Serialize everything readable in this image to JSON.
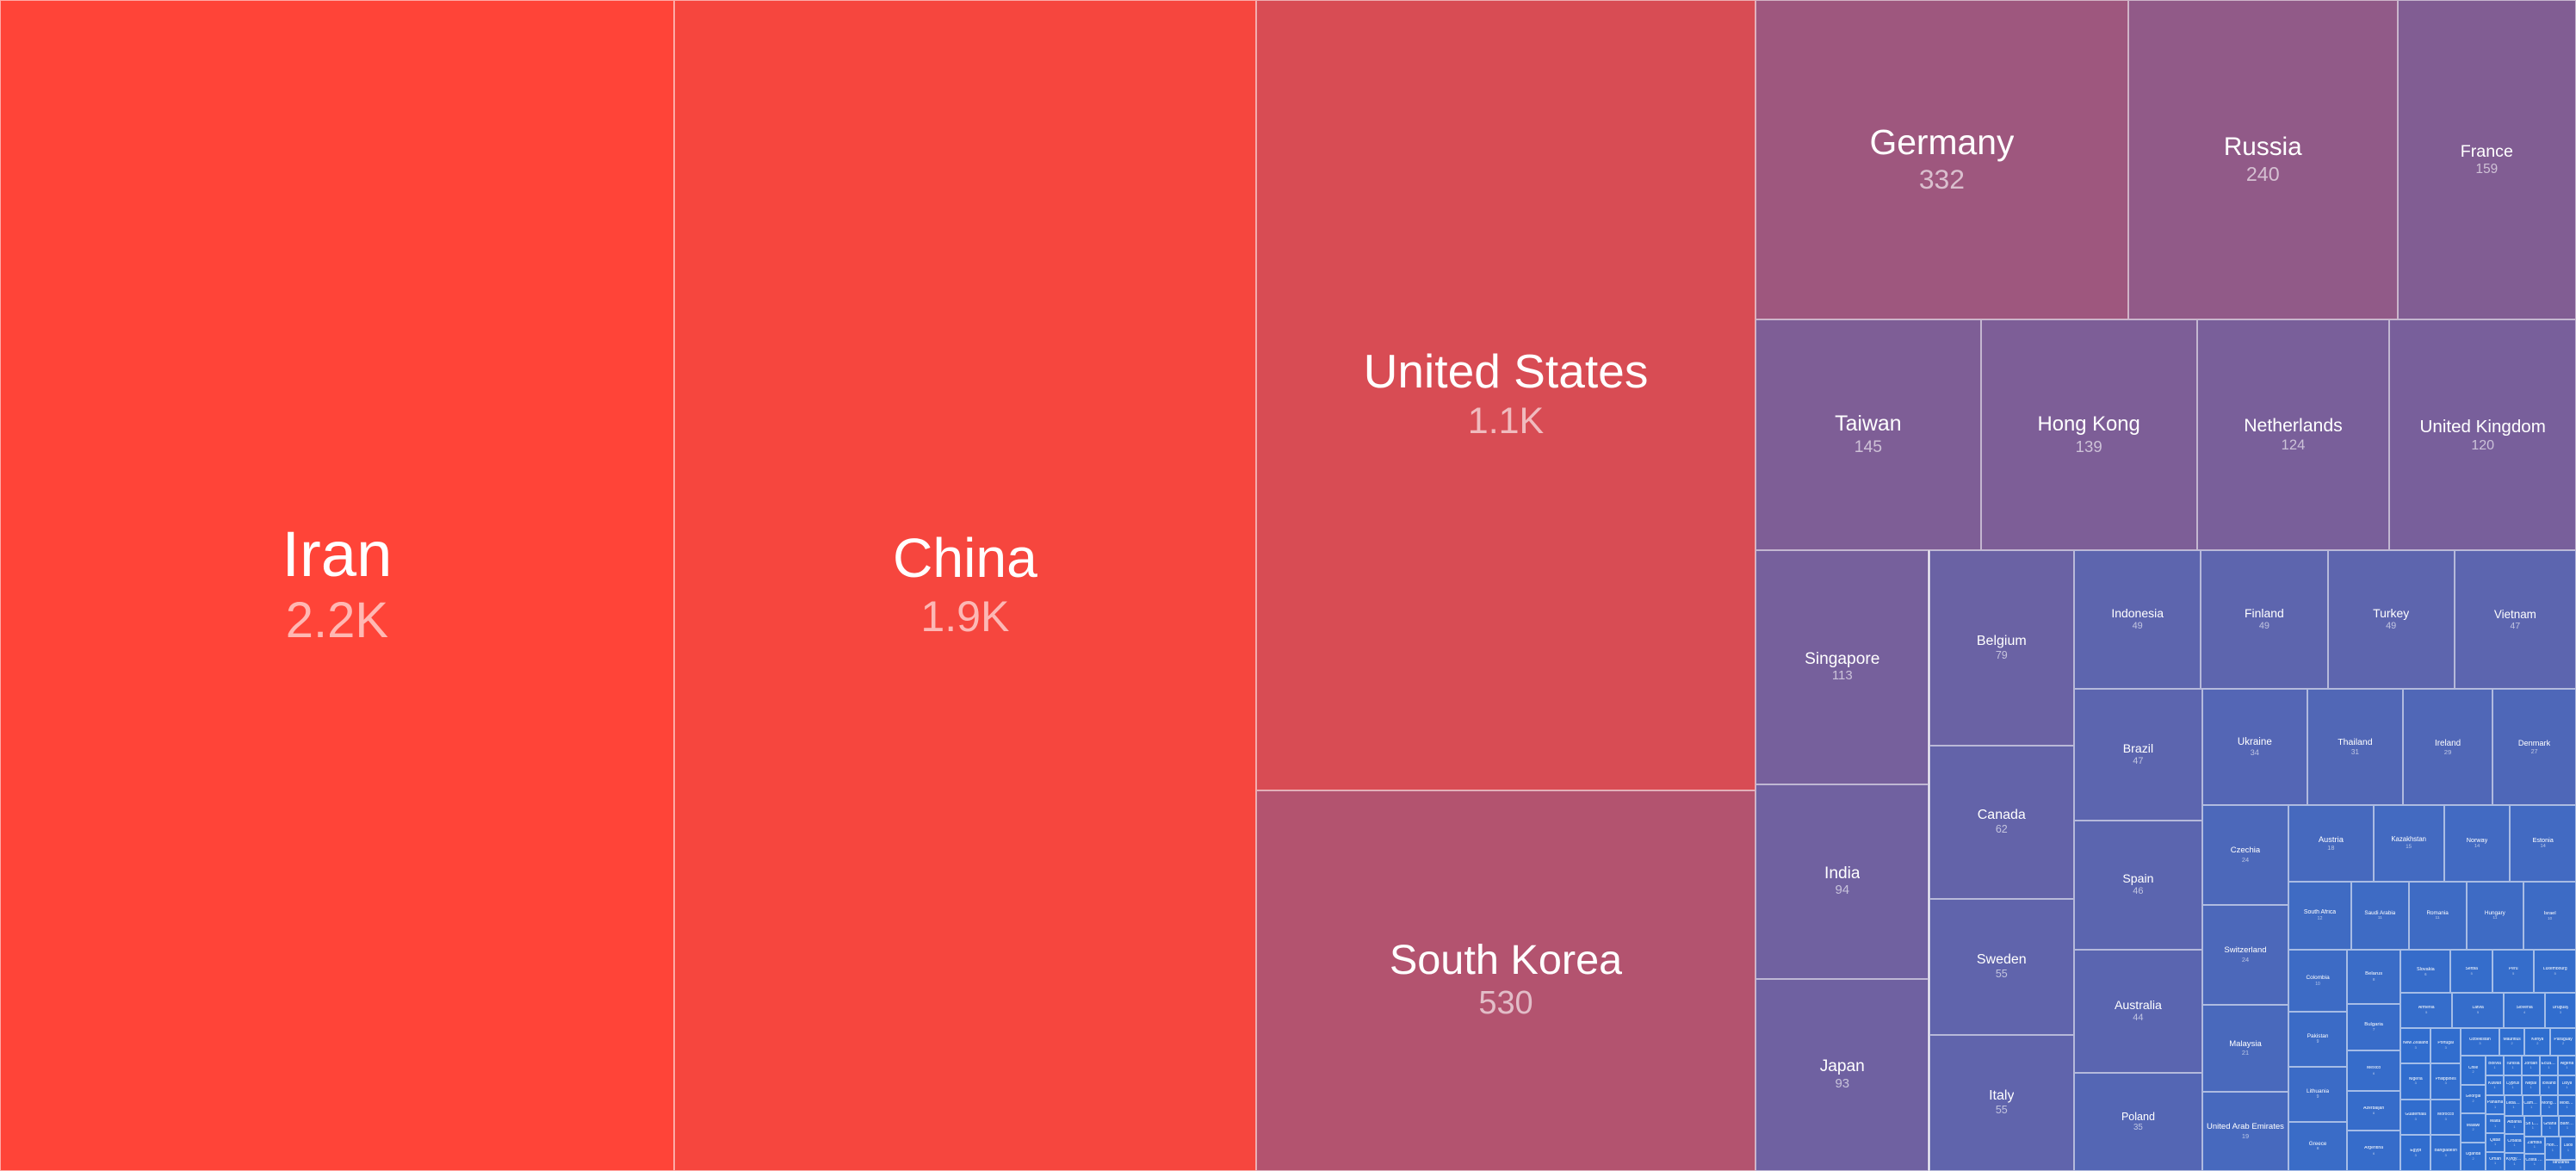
{
  "chart_data": {
    "type": "treemap",
    "colors": {
      "high": "#ff4438",
      "low": "#2e6ed0"
    },
    "items": [
      {
        "name": "Iran",
        "value": 2200,
        "label": "2.2K"
      },
      {
        "name": "China",
        "value": 1900,
        "label": "1.9K"
      },
      {
        "name": "United States",
        "value": 1100,
        "label": "1.1K"
      },
      {
        "name": "South Korea",
        "value": 530,
        "label": "530"
      },
      {
        "name": "Germany",
        "value": 332,
        "label": "332"
      },
      {
        "name": "Russia",
        "value": 240,
        "label": "240"
      },
      {
        "name": "France",
        "value": 159,
        "label": "159"
      },
      {
        "name": "Taiwan",
        "value": 145,
        "label": "145"
      },
      {
        "name": "Hong Kong",
        "value": 139,
        "label": "139"
      },
      {
        "name": "Netherlands",
        "value": 124,
        "label": "124"
      },
      {
        "name": "United Kingdom",
        "value": 120,
        "label": "120"
      },
      {
        "name": "Singapore",
        "value": 113,
        "label": "113"
      },
      {
        "name": "India",
        "value": 94,
        "label": "94"
      },
      {
        "name": "Japan",
        "value": 93,
        "label": "93"
      },
      {
        "name": "Belgium",
        "value": 79,
        "label": "79"
      },
      {
        "name": "Indonesia",
        "value": 49,
        "label": "49"
      },
      {
        "name": "Finland",
        "value": 49,
        "label": "49"
      },
      {
        "name": "Vietnam",
        "value": 47,
        "label": "47"
      },
      {
        "name": "Brazil",
        "value": 47,
        "label": "47"
      },
      {
        "name": "Spain",
        "value": 46,
        "label": "46"
      },
      {
        "name": "Canada",
        "value": 62,
        "label": "62"
      },
      {
        "name": "Sweden",
        "value": 55,
        "label": "55"
      },
      {
        "name": "Italy",
        "value": 55,
        "label": "55"
      },
      {
        "name": "Turkey",
        "value": 49,
        "label": "49"
      },
      {
        "name": "Australia",
        "value": 44,
        "label": "44"
      },
      {
        "name": "Poland",
        "value": 35,
        "label": "35"
      },
      {
        "name": "Ukraine",
        "value": 34,
        "label": "34"
      },
      {
        "name": "Thailand",
        "value": 31,
        "label": "31"
      },
      {
        "name": "Ireland",
        "value": 29,
        "label": "29"
      },
      {
        "name": "Denmark",
        "value": 27,
        "label": "27"
      },
      {
        "name": "Czechia",
        "value": 24,
        "label": "24"
      },
      {
        "name": "Switzerland",
        "value": 24,
        "label": "24"
      },
      {
        "name": "Malaysia",
        "value": 21,
        "label": "21"
      },
      {
        "name": "United Arab Emirates",
        "value": 19,
        "label": "19"
      },
      {
        "name": "Austria",
        "value": 18,
        "label": "18"
      },
      {
        "name": "Kazakhstan",
        "value": 15,
        "label": "15"
      },
      {
        "name": "Norway",
        "value": 14,
        "label": "14"
      },
      {
        "name": "Estonia",
        "value": 14,
        "label": "14"
      },
      {
        "name": "South Africa",
        "value": 12,
        "label": "12"
      },
      {
        "name": "Saudi Arabia",
        "value": 11,
        "label": "11"
      },
      {
        "name": "Romania",
        "value": 11,
        "label": "11"
      },
      {
        "name": "Hungary",
        "value": 11,
        "label": "11"
      },
      {
        "name": "Israel",
        "value": 10,
        "label": "10"
      },
      {
        "name": "Colombia",
        "value": 10,
        "label": "10"
      },
      {
        "name": "Pakistan",
        "value": 9,
        "label": "9"
      },
      {
        "name": "Lithuania",
        "value": 9,
        "label": "9"
      },
      {
        "name": "Greece",
        "value": 8,
        "label": "8"
      },
      {
        "name": "Belarus",
        "value": 8,
        "label": "8"
      },
      {
        "name": "Bulgaria",
        "value": 7,
        "label": "7"
      },
      {
        "name": "Mexico",
        "value": 6,
        "label": "6"
      },
      {
        "name": "Azerbaijan",
        "value": 6,
        "label": "6"
      },
      {
        "name": "Argentina",
        "value": 6,
        "label": "6"
      },
      {
        "name": "Slovakia",
        "value": 6,
        "label": "6"
      },
      {
        "name": "Serbia",
        "value": 5,
        "label": "5"
      },
      {
        "name": "Peru",
        "value": 5,
        "label": "5"
      },
      {
        "name": "Luxembourg",
        "value": 5,
        "label": "5"
      },
      {
        "name": "Armenia",
        "value": 5,
        "label": "5"
      },
      {
        "name": "Latvia",
        "value": 5,
        "label": "5"
      },
      {
        "name": "Slovenia",
        "value": 4,
        "label": "4"
      },
      {
        "name": "Uruguay",
        "value": 3,
        "label": "3"
      },
      {
        "name": "New Zealand",
        "value": 3,
        "label": "3"
      },
      {
        "name": "Nigeria",
        "value": 3,
        "label": "3"
      },
      {
        "name": "Guatemala",
        "value": 3,
        "label": "3"
      },
      {
        "name": "Egypt",
        "value": 3,
        "label": "3"
      },
      {
        "name": "Portugal",
        "value": 3,
        "label": "3"
      },
      {
        "name": "Philippines",
        "value": 3,
        "label": "3"
      },
      {
        "name": "Morocco",
        "value": 3,
        "label": "3"
      },
      {
        "name": "Bangladesh",
        "value": 3,
        "label": "3"
      },
      {
        "name": "Uzbekistan",
        "value": 3,
        "label": "3"
      },
      {
        "name": "Mauritius",
        "value": 2,
        "label": "2"
      },
      {
        "name": "Kenya",
        "value": 2,
        "label": "2"
      },
      {
        "name": "Paraguay",
        "value": 2,
        "label": "2"
      },
      {
        "name": "Chile",
        "value": 2,
        "label": "2"
      },
      {
        "name": "Georgia",
        "value": 2,
        "label": "2"
      },
      {
        "name": "Malawi",
        "value": 2,
        "label": "2"
      },
      {
        "name": "Uganda",
        "value": 2,
        "label": "2"
      },
      {
        "name": "Bolivia",
        "value": 1,
        "label": "1"
      },
      {
        "name": "Tunisia",
        "value": 1,
        "label": "1"
      },
      {
        "name": "Jordan",
        "value": 1,
        "label": "1"
      },
      {
        "name": "Ecuador",
        "value": 1,
        "label": "1"
      },
      {
        "name": "Algeria",
        "value": 1,
        "label": "1"
      },
      {
        "name": "Kuwait",
        "value": 1,
        "label": "1"
      },
      {
        "name": "Cyprus",
        "value": 1,
        "label": "1"
      },
      {
        "name": "Nepal",
        "value": 1,
        "label": "1"
      },
      {
        "name": "Iceland",
        "value": 1,
        "label": "1"
      },
      {
        "name": "Libya",
        "value": 1,
        "label": "1"
      },
      {
        "name": "Panama",
        "value": 1,
        "label": "1"
      },
      {
        "name": "Malta",
        "value": 1,
        "label": "1"
      },
      {
        "name": "Qatar",
        "value": 1,
        "label": "1"
      },
      {
        "name": "Oman",
        "value": 1,
        "label": "1"
      },
      {
        "name": "Lebanon",
        "value": 1,
        "label": "1"
      },
      {
        "name": "Cambodia",
        "value": 1,
        "label": "1"
      },
      {
        "name": "Mongolia",
        "value": 1,
        "label": "1"
      },
      {
        "name": "Moldova",
        "value": 1,
        "label": "1"
      },
      {
        "name": "Albania",
        "value": 1,
        "label": "1"
      },
      {
        "name": "Croatia",
        "value": 1,
        "label": "1"
      },
      {
        "name": "Kyrgyzstan",
        "value": 1,
        "label": "1"
      },
      {
        "name": "Sri Lanka",
        "value": 1,
        "label": "1"
      },
      {
        "name": "Ghana",
        "value": 1,
        "label": "1"
      },
      {
        "name": "Bahrain",
        "value": 1,
        "label": "1"
      },
      {
        "name": "Zambia",
        "value": 1,
        "label": "1"
      },
      {
        "name": "Costa Rica",
        "value": 1,
        "label": "1"
      },
      {
        "name": "Honduras",
        "value": 1,
        "label": "1"
      },
      {
        "name": "Laos",
        "value": 1,
        "label": "1"
      },
      {
        "name": "Tanzania",
        "value": 1,
        "label": "1"
      }
    ]
  }
}
